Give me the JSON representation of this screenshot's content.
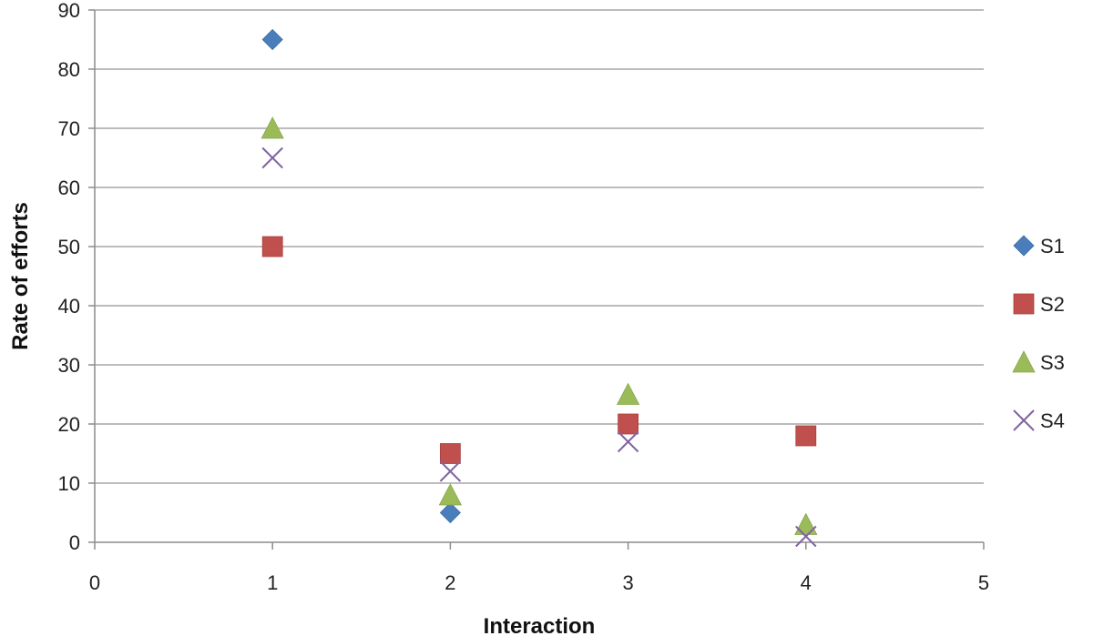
{
  "chart_data": {
    "type": "scatter",
    "xlabel": "Interaction",
    "ylabel": "Rate of efforts",
    "xlim": [
      0,
      5
    ],
    "ylim": [
      0,
      90
    ],
    "x_ticks": [
      "0",
      "1",
      "2",
      "3",
      "4",
      "5"
    ],
    "y_ticks": [
      "0",
      "10",
      "20",
      "30",
      "40",
      "50",
      "60",
      "70",
      "80",
      "90"
    ],
    "grid": "horizontal",
    "legend_position": "right",
    "series": [
      {
        "name": "S1",
        "marker": "diamond",
        "color": "#4a7ebb",
        "points": [
          {
            "x": 1,
            "y": 85
          },
          {
            "x": 2,
            "y": 5
          }
        ]
      },
      {
        "name": "S2",
        "marker": "square",
        "color": "#c0504d",
        "points": [
          {
            "x": 1,
            "y": 50
          },
          {
            "x": 2,
            "y": 15
          },
          {
            "x": 3,
            "y": 20
          },
          {
            "x": 4,
            "y": 18
          }
        ]
      },
      {
        "name": "S3",
        "marker": "triangle",
        "color": "#9bbb59",
        "points": [
          {
            "x": 1,
            "y": 70
          },
          {
            "x": 2,
            "y": 8
          },
          {
            "x": 3,
            "y": 25
          },
          {
            "x": 4,
            "y": 3
          }
        ]
      },
      {
        "name": "S4",
        "marker": "cross",
        "color": "#8064a2",
        "points": [
          {
            "x": 1,
            "y": 65
          },
          {
            "x": 2,
            "y": 12
          },
          {
            "x": 3,
            "y": 17
          },
          {
            "x": 4,
            "y": 1
          }
        ]
      }
    ]
  }
}
